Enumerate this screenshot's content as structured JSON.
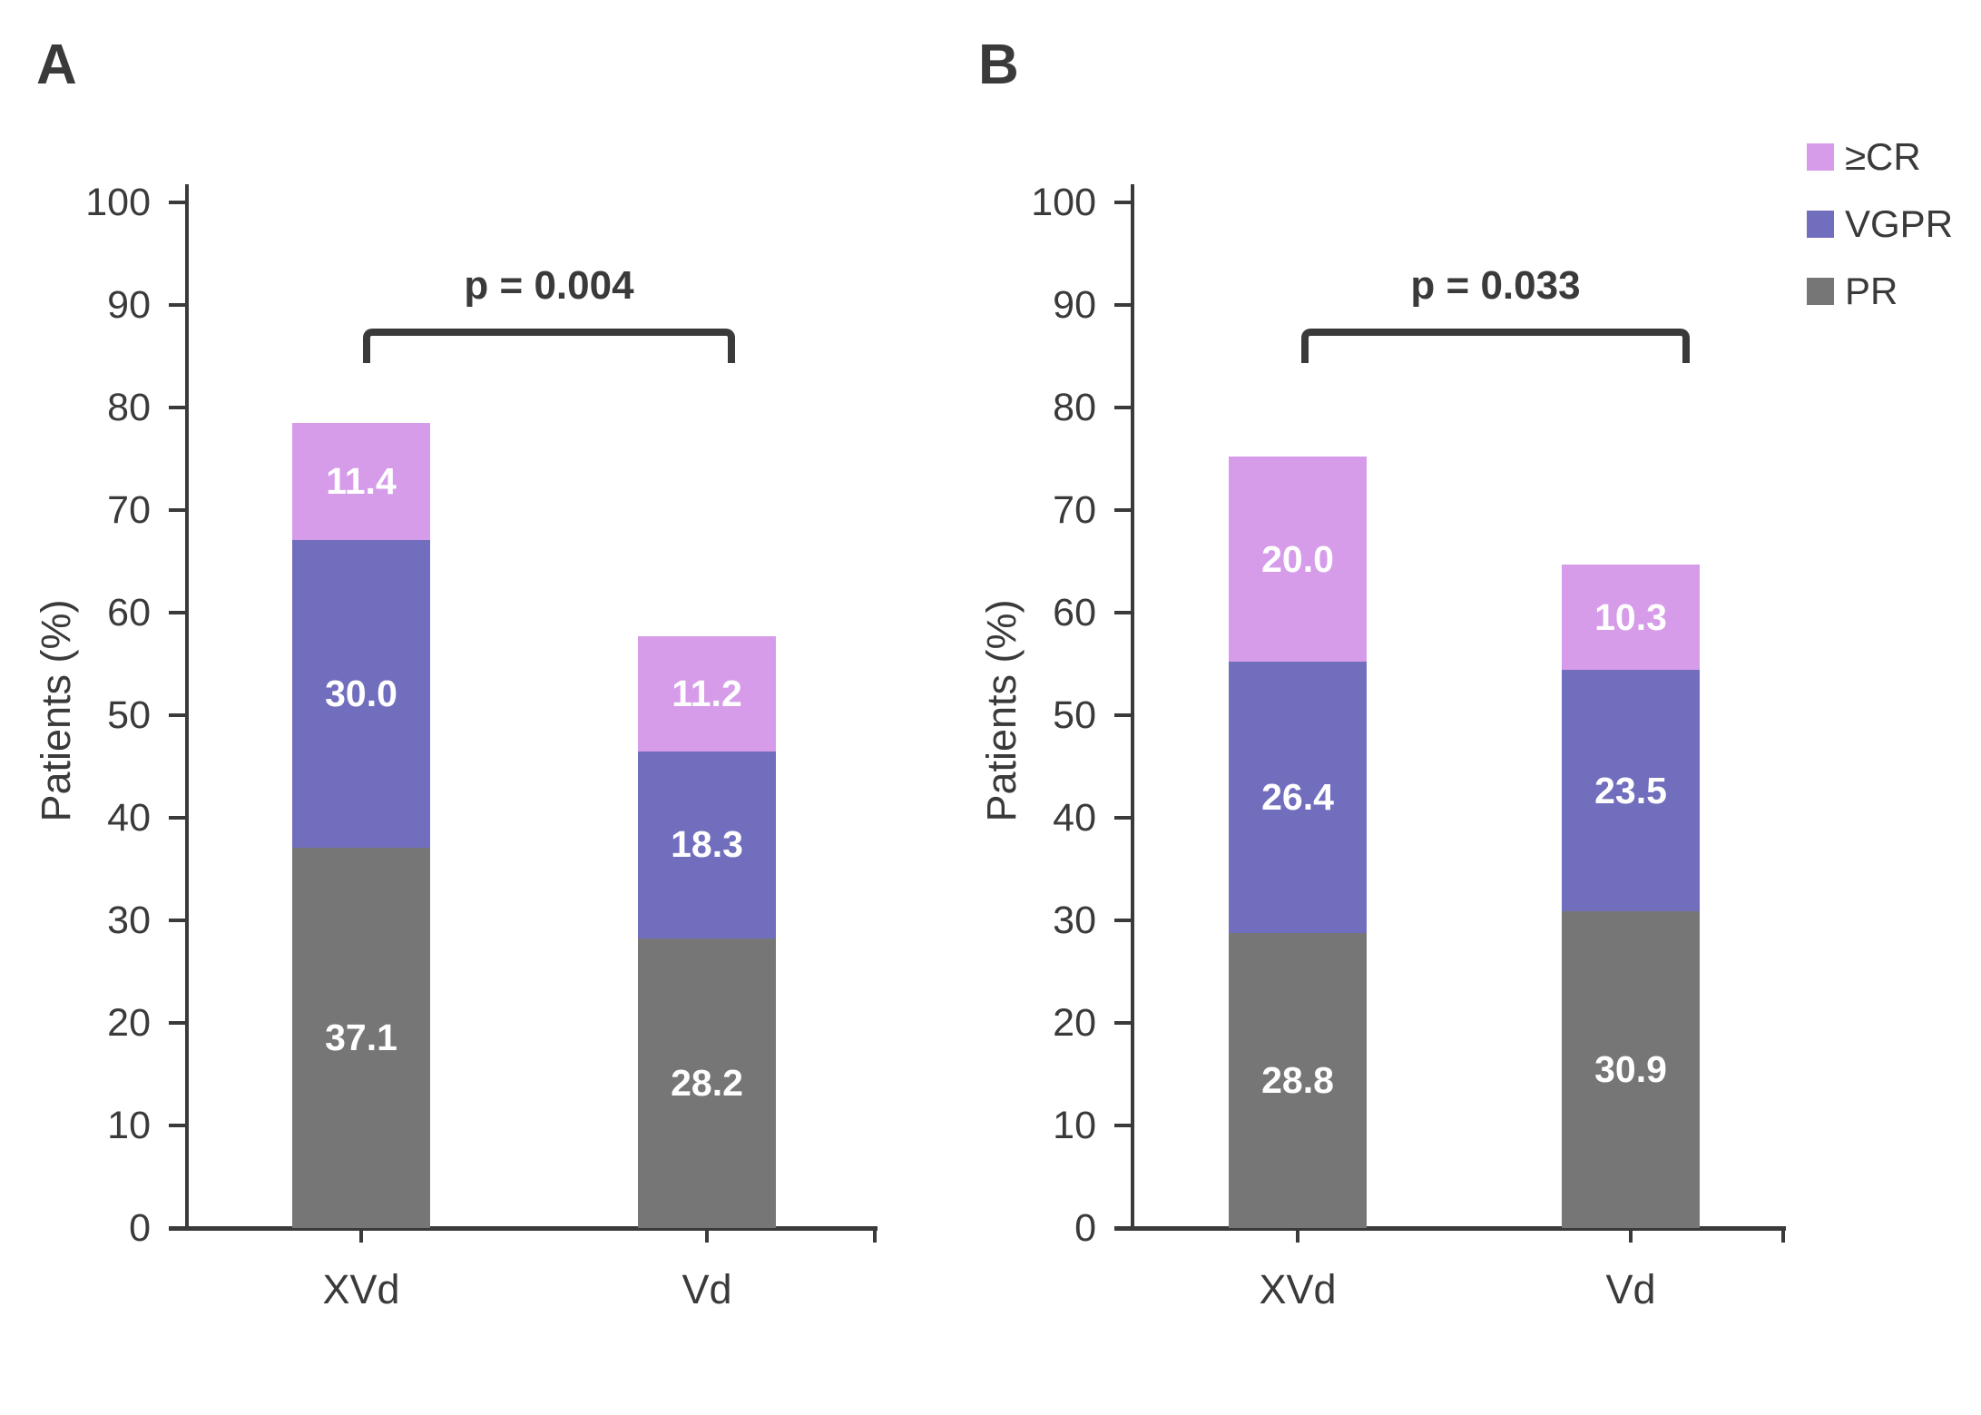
{
  "legend": {
    "position": "top-right",
    "items": [
      {
        "label": "≥CR",
        "color": "#D69CE9"
      },
      {
        "label": "VGPR",
        "color": "#716EBD"
      },
      {
        "label": "PR",
        "color": "#767676"
      }
    ]
  },
  "colors": {
    "cr": "#D69CE9",
    "vgpr": "#716EBD",
    "pr": "#767676",
    "axis_and_text": "#3a3a3a",
    "value_label": "#ffffff",
    "background": "#ffffff"
  },
  "chart_data": [
    {
      "type": "bar",
      "stacked": true,
      "panel_label": "A",
      "categories": [
        "XVd",
        "Vd"
      ],
      "series": [
        {
          "name": "PR",
          "color": "#767676",
          "values": [
            37.1,
            28.2
          ],
          "labels": [
            "37.1",
            "28.2"
          ]
        },
        {
          "name": "VGPR",
          "color": "#716EBD",
          "values": [
            30.0,
            18.3
          ],
          "labels": [
            "30.0",
            "18.3"
          ]
        },
        {
          "name": "≥CR",
          "color": "#D69CE9",
          "values": [
            11.4,
            11.2
          ],
          "labels": [
            "11.4",
            "11.2"
          ]
        }
      ],
      "totals": [
        78.5,
        57.7
      ],
      "ylabel": "Patients (%)",
      "xlabel": "",
      "ylim": [
        0,
        100
      ],
      "y_ticks": [
        0,
        10,
        20,
        30,
        40,
        50,
        60,
        70,
        80,
        90,
        100
      ],
      "grid": false,
      "p_value_label": "p = 0.004",
      "comparison": [
        "XVd",
        "Vd"
      ]
    },
    {
      "type": "bar",
      "stacked": true,
      "panel_label": "B",
      "categories": [
        "XVd",
        "Vd"
      ],
      "series": [
        {
          "name": "PR",
          "color": "#767676",
          "values": [
            28.8,
            30.9
          ],
          "labels": [
            "28.8",
            "30.9"
          ]
        },
        {
          "name": "VGPR",
          "color": "#716EBD",
          "values": [
            26.4,
            23.5
          ],
          "labels": [
            "26.4",
            "23.5"
          ]
        },
        {
          "name": "≥CR",
          "color": "#D69CE9",
          "values": [
            20.0,
            10.3
          ],
          "labels": [
            "20.0",
            "10.3"
          ]
        }
      ],
      "totals": [
        75.2,
        64.7
      ],
      "ylabel": "Patients (%)",
      "xlabel": "",
      "ylim": [
        0,
        100
      ],
      "y_ticks": [
        0,
        10,
        20,
        30,
        40,
        50,
        60,
        70,
        80,
        90,
        100
      ],
      "grid": false,
      "p_value_label": "p = 0.033",
      "comparison": [
        "XVd",
        "Vd"
      ]
    }
  ]
}
